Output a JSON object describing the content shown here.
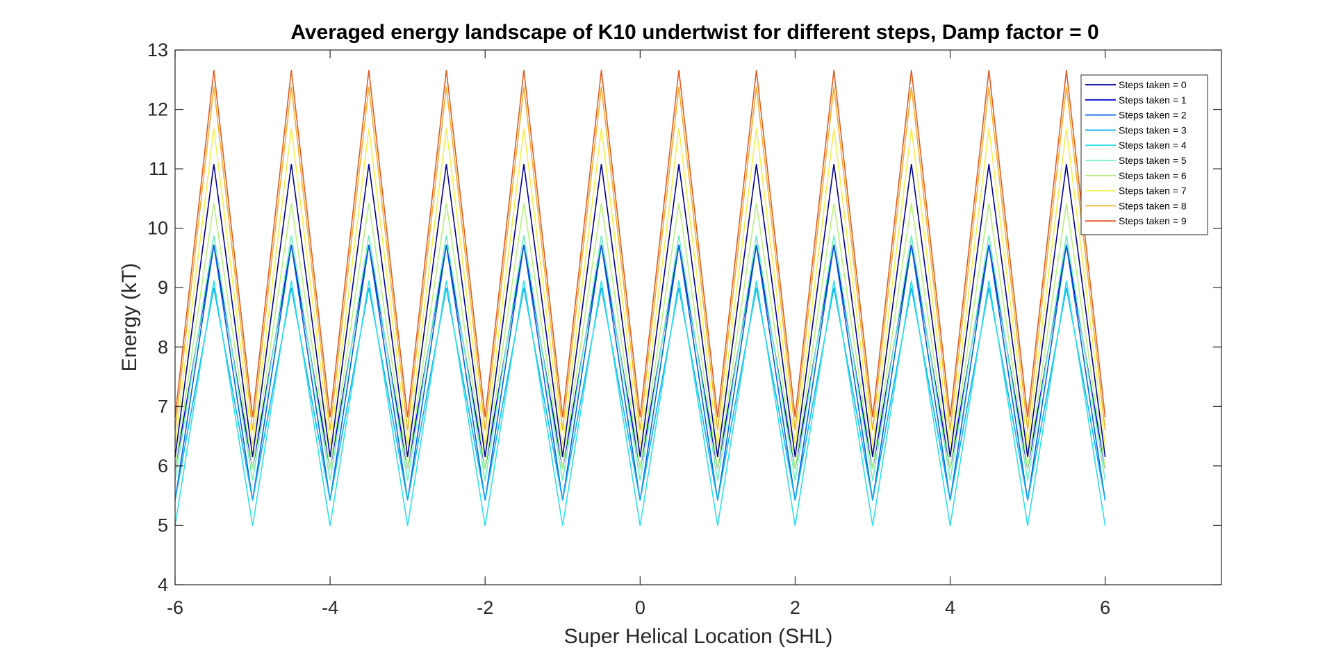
{
  "chart_data": {
    "type": "line",
    "title": "Averaged energy landscape of K10 undertwist for different steps, Damp factor = 0",
    "xlabel": "Super Helical Location (SHL)",
    "ylabel": "Energy (kT)",
    "xlim": [
      -6,
      7.5
    ],
    "ylim": [
      4,
      13
    ],
    "xticks": [
      -6,
      -4,
      -2,
      0,
      2,
      4,
      6
    ],
    "xtick_labels": [
      "-6",
      "-4",
      "-2",
      "0",
      "2",
      "4",
      "6"
    ],
    "yticks": [
      4,
      5,
      6,
      7,
      8,
      9,
      10,
      11,
      12,
      13
    ],
    "ytick_labels": [
      "4",
      "5",
      "6",
      "7",
      "8",
      "9",
      "10",
      "11",
      "12",
      "13"
    ],
    "grid": false,
    "legend_position": "top-right",
    "x": [
      -6,
      -5.5,
      -5,
      -4.5,
      -4,
      -3.5,
      -3,
      -2.5,
      -2,
      -1.5,
      -1,
      -0.5,
      0,
      0.5,
      1,
      1.5,
      2,
      2.5,
      3,
      3.5,
      4,
      4.5,
      5,
      5.5,
      6
    ],
    "series": [
      {
        "name": "Steps taken = 0",
        "color": "#00008f",
        "trough": 6.15,
        "peak": 11.08
      },
      {
        "name": "Steps taken = 1",
        "color": "#0000d0",
        "trough": 5.95,
        "peak": 9.72
      },
      {
        "name": "Steps taken = 2",
        "color": "#0060e0",
        "trough": 5.42,
        "peak": 9.72
      },
      {
        "name": "Steps taken = 3",
        "color": "#10b0f0",
        "trough": 5.42,
        "peak": 9.0
      },
      {
        "name": "Steps taken = 4",
        "color": "#2ee0e8",
        "trough": 4.99,
        "peak": 9.12
      },
      {
        "name": "Steps taken = 5",
        "color": "#70f0c0",
        "trough": 5.75,
        "peak": 9.88
      },
      {
        "name": "Steps taken = 6",
        "color": "#b8f080",
        "trough": 5.95,
        "peak": 10.42
      },
      {
        "name": "Steps taken = 7",
        "color": "#f2f050",
        "trough": 6.35,
        "peak": 11.68
      },
      {
        "name": "Steps taken = 8",
        "color": "#f0b030",
        "trough": 6.6,
        "peak": 12.38
      },
      {
        "name": "Steps taken = 9",
        "color": "#e05a20",
        "trough": 6.82,
        "peak": 12.66
      }
    ]
  }
}
